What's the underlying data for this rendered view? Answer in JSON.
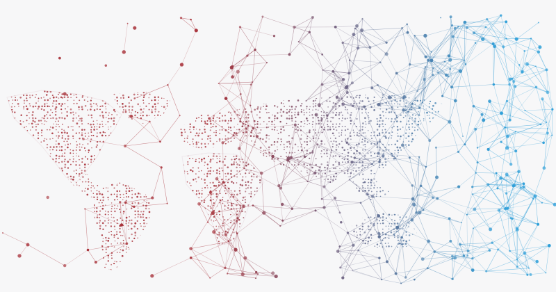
{
  "scene": {
    "background": "#f7f7f8",
    "palette": {
      "west": "#a8323a",
      "east": "#2c9ed8"
    },
    "description_subject": "world-map-network"
  }
}
